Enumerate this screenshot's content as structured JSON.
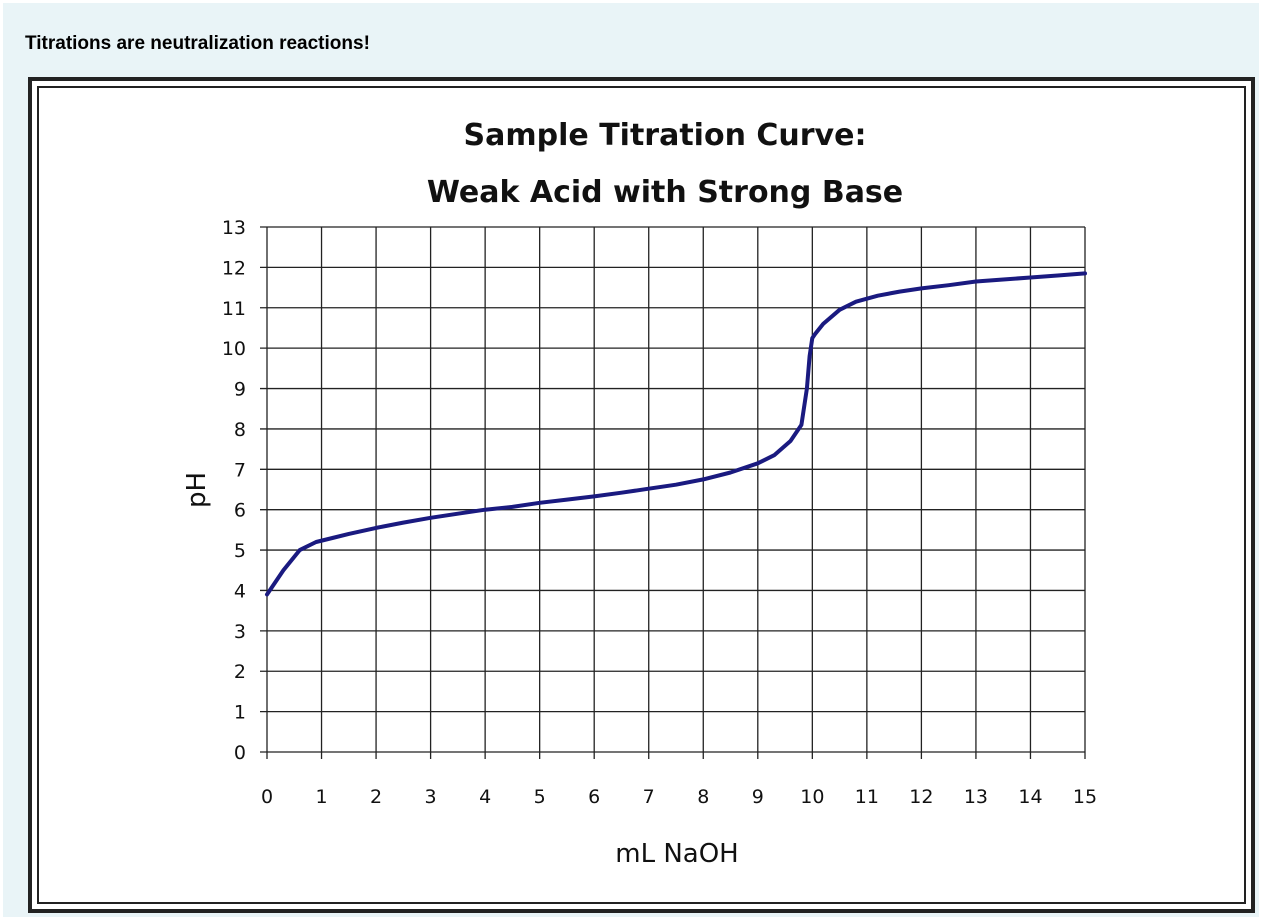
{
  "heading": "Titrations are neutralization reactions!",
  "chart_data": {
    "type": "line",
    "title_line1": "Sample Titration Curve:",
    "title_line2": "Weak Acid with Strong Base",
    "xlabel": "mL NaOH",
    "ylabel": "pH",
    "xlim": [
      0,
      15
    ],
    "ylim": [
      0,
      13
    ],
    "xticks": [
      "0",
      "1",
      "2",
      "3",
      "4",
      "5",
      "6",
      "7",
      "8",
      "9",
      "10",
      "11",
      "12",
      "13",
      "14",
      "15"
    ],
    "yticks": [
      "0",
      "1",
      "2",
      "3",
      "4",
      "5",
      "6",
      "7",
      "8",
      "9",
      "10",
      "11",
      "12",
      "13"
    ],
    "grid": true,
    "line_color": "#1a1a80",
    "series": [
      {
        "name": "pH",
        "x": [
          0,
          0.3,
          0.6,
          0.9,
          1.2,
          1.5,
          2,
          2.5,
          3,
          3.5,
          4,
          4.5,
          5,
          5.5,
          6,
          6.5,
          7,
          7.5,
          8,
          8.5,
          9,
          9.3,
          9.6,
          9.8,
          9.9,
          9.95,
          10.0,
          10.05,
          10.2,
          10.5,
          10.8,
          11.2,
          11.6,
          12,
          12.5,
          13,
          13.5,
          14,
          14.5,
          15
        ],
        "y": [
          3.9,
          4.5,
          5.0,
          5.2,
          5.3,
          5.4,
          5.55,
          5.68,
          5.8,
          5.9,
          6.0,
          6.07,
          6.17,
          6.25,
          6.33,
          6.42,
          6.52,
          6.62,
          6.75,
          6.92,
          7.15,
          7.35,
          7.7,
          8.1,
          9.0,
          9.8,
          10.25,
          10.35,
          10.6,
          10.95,
          11.15,
          11.3,
          11.4,
          11.48,
          11.56,
          11.65,
          11.7,
          11.75,
          11.8,
          11.85
        ]
      }
    ]
  }
}
